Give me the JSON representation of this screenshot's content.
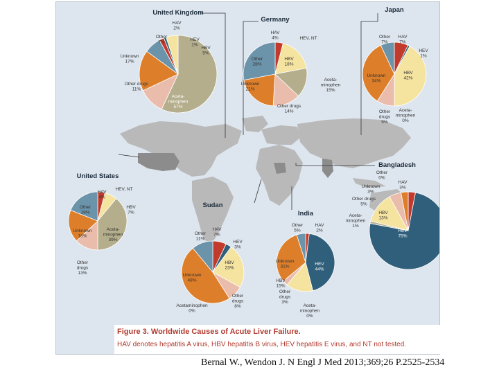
{
  "colors": {
    "HAV": "#c23a2b",
    "HEV": "#2f5f7a",
    "HBV": "#f5e3a0",
    "Other": "#6b93aa",
    "Unknown": "#dd7e2a",
    "Other drugs": "#eabcab",
    "Acetaminophen": "#b4ae8c",
    "map": "#b9b9b9",
    "background": "#dde5ee"
  },
  "chart_data": [
    {
      "type": "pie",
      "title": "United Kingdom",
      "slices": [
        {
          "label": "Acetaminophen",
          "value": 57,
          "text": "Aceta-\nminophen\n57%"
        },
        {
          "label": "Other drugs",
          "value": 11,
          "text": "Other drugs\n11%"
        },
        {
          "label": "Unknown",
          "value": 17,
          "text": "Unknown\n17%"
        },
        {
          "label": "Other",
          "value": 7,
          "text": "Other\n7%"
        },
        {
          "label": "HAV",
          "value": 2,
          "text": "HAV\n2%"
        },
        {
          "label": "HEV",
          "value": 1,
          "text": "HEV\n1%"
        },
        {
          "label": "HBV",
          "value": 5,
          "text": "HBV\n5%"
        }
      ]
    },
    {
      "type": "pie",
      "title": "Germany",
      "slices": [
        {
          "label": "HAV",
          "value": 4,
          "text": "HAV\n4%"
        },
        {
          "label": "HEV, NT",
          "value": 0,
          "text": "HEV, NT"
        },
        {
          "label": "HBV",
          "value": 18,
          "text": "HBV\n18%"
        },
        {
          "label": "Acetaminophen",
          "value": 15,
          "text": "Aceta-\nminophen\n15%"
        },
        {
          "label": "Other drugs",
          "value": 14,
          "text": "Other drugs\n14%"
        },
        {
          "label": "Unknown",
          "value": 21,
          "text": "Unknown\n21%"
        },
        {
          "label": "Other",
          "value": 28,
          "text": "Other\n28%"
        }
      ]
    },
    {
      "type": "pie",
      "title": "Japan",
      "slices": [
        {
          "label": "HAV",
          "value": 7,
          "text": "HAV\n7%"
        },
        {
          "label": "HEV",
          "value": 1,
          "text": "HEV\n1%"
        },
        {
          "label": "HBV",
          "value": 42,
          "text": "HBV\n42%"
        },
        {
          "label": "Acetaminophen",
          "value": 0,
          "text": "Aceta-\nminophen\n0%"
        },
        {
          "label": "Other drugs",
          "value": 9,
          "text": "Other\ndrugs\n9%"
        },
        {
          "label": "Unknown",
          "value": 34,
          "text": "Unknown\n34%"
        },
        {
          "label": "Other",
          "value": 7,
          "text": "Other\n7%"
        }
      ]
    },
    {
      "type": "pie",
      "title": "United States",
      "slices": [
        {
          "label": "HAV",
          "value": 4,
          "text": "HAV\n4%"
        },
        {
          "label": "HEV, NT",
          "value": 0,
          "text": "HEV, NT"
        },
        {
          "label": "HBV",
          "value": 7,
          "text": "HBV\n7%"
        },
        {
          "label": "Acetaminophen",
          "value": 39,
          "text": "Aceta-\nminophen\n39%"
        },
        {
          "label": "Other drugs",
          "value": 13,
          "text": "Other\ndrugs\n13%"
        },
        {
          "label": "Unknown",
          "value": 18,
          "text": "Unknown\n18%"
        },
        {
          "label": "Other",
          "value": 19,
          "text": "Other\n19%"
        }
      ]
    },
    {
      "type": "pie",
      "title": "Sudan",
      "slices": [
        {
          "label": "HAV",
          "value": 7,
          "text": "HAV\n7%"
        },
        {
          "label": "HEV",
          "value": 3,
          "text": "HEV\n3%"
        },
        {
          "label": "HBV",
          "value": 23,
          "text": "HBV\n23%"
        },
        {
          "label": "Other drugs",
          "value": 8,
          "text": "Other\ndrugs\n8%"
        },
        {
          "label": "Acetaminophen",
          "value": 0,
          "text": "Acetaminophen\n0%"
        },
        {
          "label": "Unknown",
          "value": 48,
          "text": "Unknown\n48%"
        },
        {
          "label": "Other",
          "value": 11,
          "text": "Other\n11%"
        }
      ]
    },
    {
      "type": "pie",
      "title": "India",
      "slices": [
        {
          "label": "HAV",
          "value": 2,
          "text": "HAV\n2%"
        },
        {
          "label": "HEV",
          "value": 44,
          "text": "HEV\n44%"
        },
        {
          "label": "Acetaminophen",
          "value": 0,
          "text": "Aceta-\nminophen\n0%"
        },
        {
          "label": "HBV",
          "value": 15,
          "text": "HBV\n15%"
        },
        {
          "label": "Other drugs",
          "value": 3,
          "text": "Other\ndrugs\n3%"
        },
        {
          "label": "Unknown",
          "value": 31,
          "text": "Unknown\n31%"
        },
        {
          "label": "Other",
          "value": 5,
          "text": "Other\n5%"
        }
      ]
    },
    {
      "type": "pie",
      "title": "Bangladesh",
      "slices": [
        {
          "label": "HAV",
          "value": 3,
          "text": "HAV\n3%"
        },
        {
          "label": "HEV",
          "value": 75,
          "text": "HEV\n75%"
        },
        {
          "label": "Acetaminophen",
          "value": 1,
          "text": "Aceta-\nminophen\n1%"
        },
        {
          "label": "HBV",
          "value": 13,
          "text": "HBV\n13%"
        },
        {
          "label": "Other drugs",
          "value": 5,
          "text": "Other drugs\n5%"
        },
        {
          "label": "Unknown",
          "value": 3,
          "text": "Unknown\n3%"
        },
        {
          "label": "Other",
          "value": 0,
          "text": "Other\n0%"
        }
      ]
    }
  ],
  "caption": {
    "lead": "Figure 3. Worldwide Causes of Acute Liver Failure.",
    "text": "HAV denotes hepatitis A virus, HBV hepatitis B virus, HEV hepatitis E virus, and NT not tested."
  },
  "citation": "Bernal W., Wendon J. N Engl J Med 2013;369;26 P.2525-2534"
}
